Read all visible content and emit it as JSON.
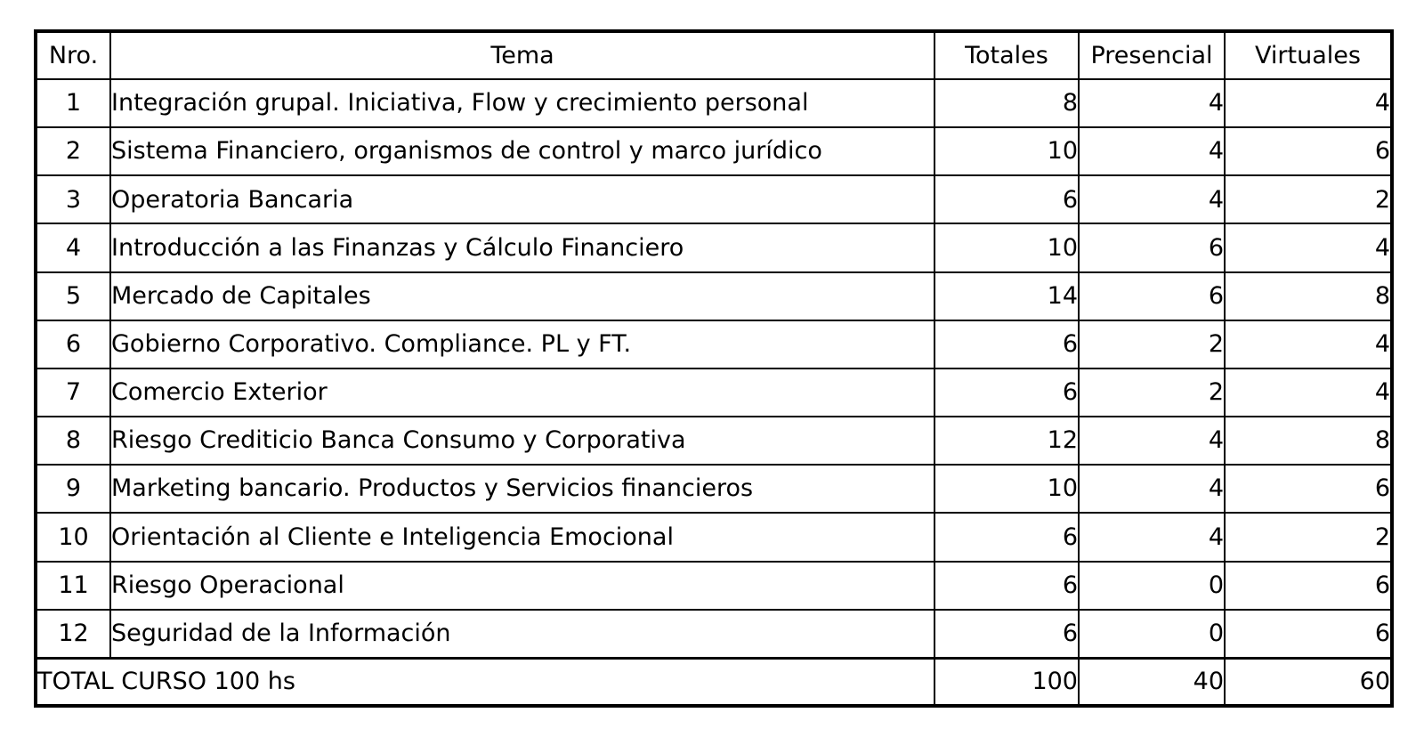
{
  "table": {
    "columns": [
      {
        "key": "nro",
        "label": "Nro."
      },
      {
        "key": "tema",
        "label": "Tema"
      },
      {
        "key": "totales",
        "label": "Totales"
      },
      {
        "key": "presencial",
        "label": "Presencial"
      },
      {
        "key": "virtuales",
        "label": "Virtuales"
      }
    ],
    "rows": [
      {
        "nro": "1",
        "tema": "Integración grupal. Iniciativa, Flow y crecimiento personal",
        "totales": "8",
        "presencial": "4",
        "virtuales": "4"
      },
      {
        "nro": "2",
        "tema": "Sistema Financiero, organismos de control y marco jurídico",
        "totales": "10",
        "presencial": "4",
        "virtuales": "6"
      },
      {
        "nro": "3",
        "tema": "Operatoria Bancaria",
        "totales": "6",
        "presencial": "4",
        "virtuales": "2"
      },
      {
        "nro": "4",
        "tema": "Introducción a las Finanzas y Cálculo Financiero",
        "totales": "10",
        "presencial": "6",
        "virtuales": "4"
      },
      {
        "nro": "5",
        "tema": "Mercado de Capitales",
        "totales": "14",
        "presencial": "6",
        "virtuales": "8"
      },
      {
        "nro": "6",
        "tema": "Gobierno Corporativo. Compliance. PL y FT.",
        "totales": "6",
        "presencial": "2",
        "virtuales": "4"
      },
      {
        "nro": "7",
        "tema": "Comercio Exterior",
        "totales": "6",
        "presencial": "2",
        "virtuales": "4"
      },
      {
        "nro": "8",
        "tema": "Riesgo Crediticio Banca Consumo y Corporativa",
        "totales": "12",
        "presencial": "4",
        "virtuales": "8"
      },
      {
        "nro": "9",
        "tema": "Marketing bancario. Productos y Servicios financieros",
        "totales": "10",
        "presencial": "4",
        "virtuales": "6"
      },
      {
        "nro": "10",
        "tema": "Orientación al Cliente e Inteligencia Emocional",
        "totales": "6",
        "presencial": "4",
        "virtuales": "2"
      },
      {
        "nro": "11",
        "tema": "Riesgo Operacional",
        "totales": "6",
        "presencial": "0",
        "virtuales": "6"
      },
      {
        "nro": "12",
        "tema": "Seguridad de la Información",
        "totales": "6",
        "presencial": "0",
        "virtuales": "6"
      }
    ],
    "total_row": {
      "label": "TOTAL CURSO 100 hs",
      "totales": "100",
      "presencial": "40",
      "virtuales": "60"
    },
    "colors": {
      "border": "#000000",
      "background": "#ffffff",
      "text": "#000000"
    }
  }
}
